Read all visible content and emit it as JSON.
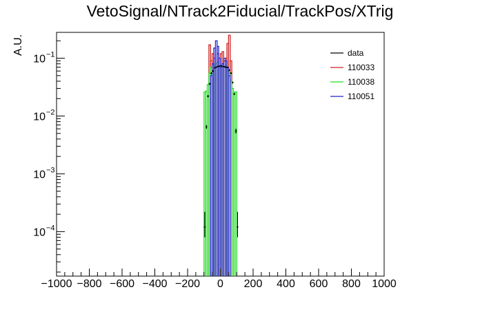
{
  "chart_data": {
    "type": "line",
    "title": "VetoSignal/NTrack2Fiducial/TrackPos/XTrig",
    "xlabel": "",
    "ylabel": "A.U.",
    "xlim": [
      -1000,
      1000
    ],
    "ylim": [
      1.7e-05,
      0.28
    ],
    "yscale": "log",
    "grid": false,
    "legend_position": "top-right",
    "x_ticks": [
      "−1000",
      "−800",
      "−600",
      "−400",
      "−200",
      "0",
      "200",
      "400",
      "600",
      "800",
      "1000"
    ],
    "y_ticks": [
      {
        "base": "10",
        "exp": "−4",
        "value": 0.0001
      },
      {
        "base": "10",
        "exp": "−3",
        "value": 0.001
      },
      {
        "base": "10",
        "exp": "−2",
        "value": 0.01
      },
      {
        "base": "10",
        "exp": "−1",
        "value": 0.1
      }
    ],
    "bin_width": 10,
    "series": [
      {
        "name": "data",
        "color": "#000000",
        "style": "points",
        "x": [
          -95,
          -85,
          -75,
          -65,
          -55,
          -45,
          -35,
          -25,
          -15,
          -5,
          5,
          15,
          25,
          35,
          45,
          55,
          65,
          75,
          85,
          95,
          105
        ],
        "y": [
          0.00012,
          0.0065,
          0.022,
          0.036,
          0.055,
          0.06,
          0.068,
          0.07,
          0.072,
          0.073,
          0.074,
          0.072,
          0.071,
          0.07,
          0.069,
          0.062,
          0.055,
          0.038,
          0.024,
          0.0055,
          0.00012
        ],
        "err_low": [
          4e-05,
          0.0005,
          0.001,
          0.0015,
          0.002,
          0.002,
          0.002,
          0.002,
          0.002,
          0.002,
          0.002,
          0.002,
          0.002,
          0.002,
          0.002,
          0.002,
          0.002,
          0.0015,
          0.001,
          0.0005,
          4e-05
        ],
        "err_high": [
          0.0001,
          0.0005,
          0.001,
          0.0015,
          0.002,
          0.002,
          0.002,
          0.002,
          0.002,
          0.002,
          0.002,
          0.002,
          0.002,
          0.002,
          0.002,
          0.002,
          0.002,
          0.0015,
          0.001,
          0.0005,
          0.0001
        ]
      },
      {
        "name": "110033",
        "color": "#cc2222",
        "style": "step",
        "x": [
          -70,
          -60,
          -50,
          -40,
          -30,
          -20,
          -10,
          0,
          10,
          20,
          30,
          40,
          50,
          60
        ],
        "y": [
          0.17,
          0.09,
          0.12,
          0.1,
          0.07,
          0.12,
          0.1,
          0.12,
          0.13,
          0.09,
          0.1,
          0.18,
          0.25,
          0.09
        ]
      },
      {
        "name": "110038",
        "color": "#22dd22",
        "style": "step",
        "x": [
          -100,
          -90,
          -80,
          -70,
          -60,
          -50,
          -40,
          -30,
          -20,
          -10,
          0,
          10,
          20,
          30,
          40,
          50,
          60,
          70,
          80,
          90
        ],
        "y": [
          0.026,
          0.027,
          0.035,
          0.055,
          0.07,
          0.06,
          0.075,
          0.08,
          0.085,
          0.07,
          0.075,
          0.08,
          0.07,
          0.075,
          0.06,
          0.055,
          0.04,
          0.03,
          0.026,
          0.026
        ]
      },
      {
        "name": "110051",
        "color": "#2222cc",
        "style": "step",
        "x": [
          -60,
          -50,
          -40,
          -30,
          -20,
          -10,
          0,
          10,
          20,
          30,
          40,
          50
        ],
        "y": [
          0.05,
          0.08,
          0.15,
          0.2,
          0.16,
          0.1,
          0.07,
          0.08,
          0.1,
          0.09,
          0.07,
          0.05
        ]
      }
    ]
  }
}
